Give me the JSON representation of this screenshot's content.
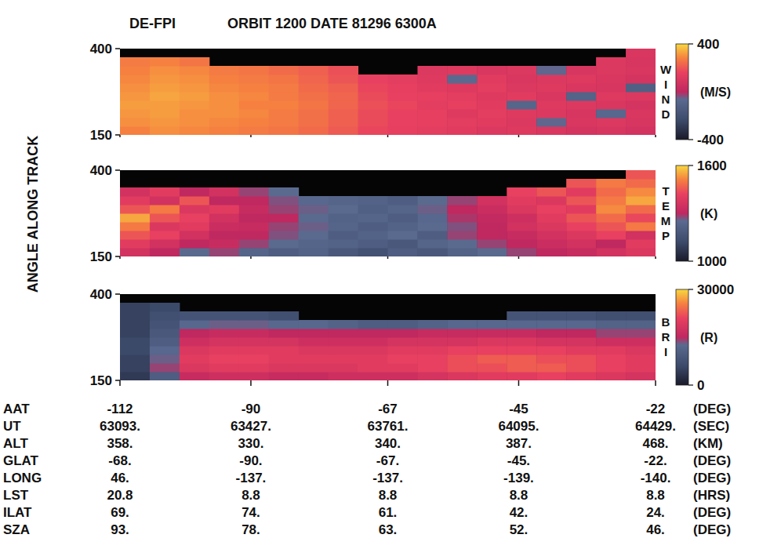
{
  "header": {
    "instrument": "DE-FPI",
    "title": "ORBIT 1200 DATE 81296 6300A"
  },
  "y_label": "ANGLE ALONG TRACK",
  "chart_data": [
    {
      "type": "heatmap",
      "label": "WIND",
      "unit": "(M/S)",
      "xlim": [
        -112,
        -22
      ],
      "xticks": [
        -112,
        -90,
        -67,
        -45,
        -22
      ],
      "ylim": [
        150,
        400
      ],
      "yticks": [
        150,
        400
      ],
      "tick_labels": "y",
      "x": [
        -109.5,
        -104.5,
        -99.5,
        -94.5,
        -89.5,
        -84.5,
        -79.5,
        -74.5,
        -69.5,
        -64.5,
        -59.5,
        -54.5,
        -49.5,
        -44.5,
        -39.5,
        -34.5,
        -29.5,
        -24.5
      ],
      "y": [
        162.5,
        187.5,
        212.5,
        237.5,
        262.5,
        287.5,
        312.5,
        337.5,
        362.5,
        387.5
      ],
      "cells": [
        [
          280,
          300,
          290,
          280,
          270,
          260,
          240,
          210,
          170,
          150,
          140,
          130,
          110,
          120,
          100,
          80,
          90,
          70
        ],
        [
          300,
          310,
          300,
          290,
          280,
          270,
          250,
          220,
          180,
          160,
          150,
          140,
          130,
          110,
          -60,
          100,
          110,
          90
        ],
        [
          310,
          320,
          300,
          300,
          290,
          270,
          250,
          220,
          180,
          160,
          150,
          120,
          140,
          120,
          110,
          90,
          -80,
          100
        ],
        [
          320,
          320,
          310,
          300,
          280,
          280,
          260,
          230,
          190,
          170,
          140,
          150,
          130,
          -90,
          120,
          110,
          100,
          80
        ],
        [
          310,
          330,
          320,
          300,
          290,
          270,
          250,
          230,
          180,
          160,
          150,
          140,
          120,
          130,
          100,
          -100,
          120,
          110
        ],
        [
          300,
          320,
          310,
          290,
          280,
          270,
          240,
          220,
          170,
          150,
          130,
          120,
          140,
          110,
          120,
          100,
          90,
          -120
        ],
        [
          290,
          310,
          300,
          280,
          270,
          260,
          230,
          200,
          160,
          140,
          120,
          -70,
          130,
          100,
          110,
          120,
          100,
          80
        ],
        [
          280,
          300,
          290,
          270,
          260,
          240,
          220,
          190,
          null,
          null,
          110,
          120,
          100,
          110,
          -60,
          90,
          110,
          100
        ],
        [
          270,
          280,
          260,
          null,
          null,
          null,
          null,
          null,
          null,
          null,
          null,
          null,
          null,
          null,
          null,
          null,
          110,
          90
        ],
        [
          null,
          null,
          null,
          null,
          null,
          null,
          null,
          null,
          null,
          null,
          null,
          null,
          null,
          null,
          null,
          null,
          null,
          100
        ]
      ],
      "clim": [
        -400,
        400
      ],
      "cticks": [
        -400,
        400
      ]
    },
    {
      "type": "heatmap",
      "label": "TEMP",
      "unit": "(K)",
      "xlim": [
        -112,
        -22
      ],
      "xticks": [
        -112,
        -90,
        -67,
        -45,
        -22
      ],
      "ylim": [
        150,
        400
      ],
      "yticks": [
        150,
        400
      ],
      "tick_labels": "y",
      "x": [
        -109.5,
        -104.5,
        -99.5,
        -94.5,
        -89.5,
        -84.5,
        -79.5,
        -74.5,
        -69.5,
        -64.5,
        -59.5,
        -54.5,
        -49.5,
        -44.5,
        -39.5,
        -34.5,
        -29.5,
        -24.5
      ],
      "y": [
        162.5,
        187.5,
        212.5,
        237.5,
        262.5,
        287.5,
        312.5,
        337.5,
        362.5,
        387.5
      ],
      "cells": [
        [
          1350,
          1300,
          1250,
          1280,
          1230,
          1200,
          1220,
          1180,
          1150,
          1200,
          1180,
          1220,
          1250,
          1280,
          1300,
          1320,
          1350,
          1380
        ],
        [
          1400,
          1350,
          1300,
          1320,
          1280,
          1250,
          1230,
          1220,
          1200,
          1180,
          1230,
          1250,
          1280,
          1300,
          1330,
          1350,
          1300,
          1400
        ],
        [
          1450,
          1420,
          1350,
          1300,
          1300,
          1270,
          1250,
          1200,
          1220,
          1250,
          1200,
          1280,
          1300,
          1320,
          1350,
          1380,
          1420,
          1350
        ],
        [
          1500,
          1380,
          1400,
          1330,
          1320,
          1280,
          1260,
          1230,
          1200,
          1220,
          1250,
          1270,
          1300,
          1350,
          1380,
          1420,
          1450,
          1500
        ],
        [
          1550,
          1450,
          1420,
          1350,
          1300,
          1300,
          1250,
          1220,
          1230,
          1200,
          1240,
          1290,
          1310,
          1340,
          1400,
          1450,
          1480,
          1430
        ],
        [
          1450,
          1500,
          1380,
          1400,
          1320,
          1280,
          1260,
          1250,
          1210,
          1230,
          1260,
          1300,
          1330,
          1380,
          1420,
          1400,
          1520,
          1480
        ],
        [
          1400,
          1350,
          1450,
          1300,
          1300,
          1270,
          1240,
          1230,
          1220,
          1200,
          1250,
          1280,
          1350,
          1400,
          1380,
          1450,
          1500,
          1550
        ],
        [
          1350,
          1400,
          1300,
          1350,
          1280,
          1250,
          null,
          null,
          null,
          null,
          null,
          null,
          null,
          1420,
          1450,
          1400,
          1480,
          1520
        ],
        [
          null,
          null,
          null,
          null,
          null,
          null,
          null,
          null,
          null,
          null,
          null,
          null,
          null,
          null,
          null,
          1450,
          1500,
          1480
        ],
        [
          null,
          null,
          null,
          null,
          null,
          null,
          null,
          null,
          null,
          null,
          null,
          null,
          null,
          null,
          null,
          null,
          null,
          1450
        ]
      ],
      "clim": [
        1000,
        1600
      ],
      "cticks": [
        1000,
        1600
      ]
    },
    {
      "type": "heatmap",
      "label": "BRI",
      "unit": "(R)",
      "xlim": [
        -112,
        -22
      ],
      "xticks": [
        -112,
        -90,
        -67,
        -45,
        -22
      ],
      "ylim": [
        150,
        400
      ],
      "yticks": [
        150,
        400
      ],
      "tick_labels": "y",
      "x": [
        -109.5,
        -104.5,
        -99.5,
        -94.5,
        -89.5,
        -84.5,
        -79.5,
        -74.5,
        -69.5,
        -64.5,
        -59.5,
        -54.5,
        -49.5,
        -44.5,
        -39.5,
        -34.5,
        -29.5,
        -24.5
      ],
      "y": [
        162.5,
        187.5,
        212.5,
        237.5,
        262.5,
        287.5,
        312.5,
        337.5,
        362.5,
        387.5
      ],
      "cells": [
        [
          4000,
          10000,
          16000,
          17000,
          17000,
          16000,
          16000,
          17000,
          17000,
          17000,
          18000,
          19000,
          20000,
          20000,
          21000,
          20000,
          19000,
          18000
        ],
        [
          5000,
          14000,
          19000,
          20000,
          20000,
          19000,
          19000,
          19000,
          20000,
          20000,
          21000,
          22000,
          22000,
          23000,
          23000,
          22000,
          21000,
          20000
        ],
        [
          5000,
          13000,
          20000,
          21000,
          21000,
          20000,
          20000,
          20000,
          20000,
          21000,
          21000,
          22000,
          23000,
          23000,
          22000,
          22000,
          21000,
          20000
        ],
        [
          6000,
          12000,
          19000,
          20000,
          20000,
          20000,
          19000,
          19000,
          19000,
          20000,
          20000,
          21000,
          21000,
          21000,
          21000,
          20000,
          20000,
          19000
        ],
        [
          6000,
          10000,
          17000,
          18000,
          18000,
          18000,
          17000,
          17000,
          17000,
          18000,
          18000,
          18000,
          19000,
          19000,
          18000,
          18000,
          17000,
          17000
        ],
        [
          5000,
          9000,
          15000,
          16000,
          16000,
          15000,
          15000,
          15000,
          15000,
          15000,
          16000,
          16000,
          16000,
          16000,
          15000,
          15000,
          14000,
          14000
        ],
        [
          5000,
          8000,
          12000,
          13000,
          13000,
          12000,
          12000,
          11000,
          10000,
          10000,
          11000,
          12000,
          12000,
          12000,
          12000,
          12000,
          11000,
          11000
        ],
        [
          5000,
          7000,
          8000,
          8000,
          8000,
          7000,
          null,
          null,
          null,
          null,
          null,
          null,
          null,
          8000,
          8000,
          8000,
          7000,
          7000
        ],
        [
          5000,
          6000,
          null,
          null,
          null,
          null,
          null,
          null,
          null,
          null,
          null,
          null,
          null,
          null,
          null,
          null,
          null,
          null
        ],
        [
          null,
          null,
          null,
          null,
          null,
          null,
          null,
          null,
          null,
          null,
          null,
          null,
          null,
          null,
          null,
          null,
          null,
          null
        ]
      ],
      "clim": [
        0,
        30000
      ],
      "cticks": [
        0,
        30000
      ]
    }
  ],
  "table": [
    {
      "name": "AAT",
      "unit": "(DEG)",
      "labels": [
        "-112",
        "-90",
        "-67",
        "-45",
        "-22"
      ]
    },
    {
      "name": "UT",
      "unit": "(SEC)",
      "labels": [
        "63093.",
        "63427.",
        "63761.",
        "64095.",
        "64429."
      ]
    },
    {
      "name": "ALT",
      "unit": "(KM)",
      "labels": [
        "358.",
        "330.",
        "340.",
        "387.",
        "468."
      ]
    },
    {
      "name": "GLAT",
      "unit": "(DEG)",
      "labels": [
        "-68.",
        "-90.",
        "-67.",
        "-45.",
        "-22."
      ]
    },
    {
      "name": "LONG",
      "unit": "(DEG)",
      "labels": [
        "46.",
        "-137.",
        "-137.",
        "-139.",
        "-140."
      ]
    },
    {
      "name": "LST",
      "unit": "(HRS)",
      "labels": [
        "20.8",
        "8.8",
        "8.8",
        "8.8",
        "8.8"
      ]
    },
    {
      "name": "ILAT",
      "unit": "(DEG)",
      "labels": [
        "69.",
        "74.",
        "61.",
        "42.",
        "24."
      ]
    },
    {
      "name": "SZA",
      "unit": "(DEG)",
      "labels": [
        "93.",
        "78.",
        "63.",
        "52.",
        "46."
      ]
    }
  ]
}
